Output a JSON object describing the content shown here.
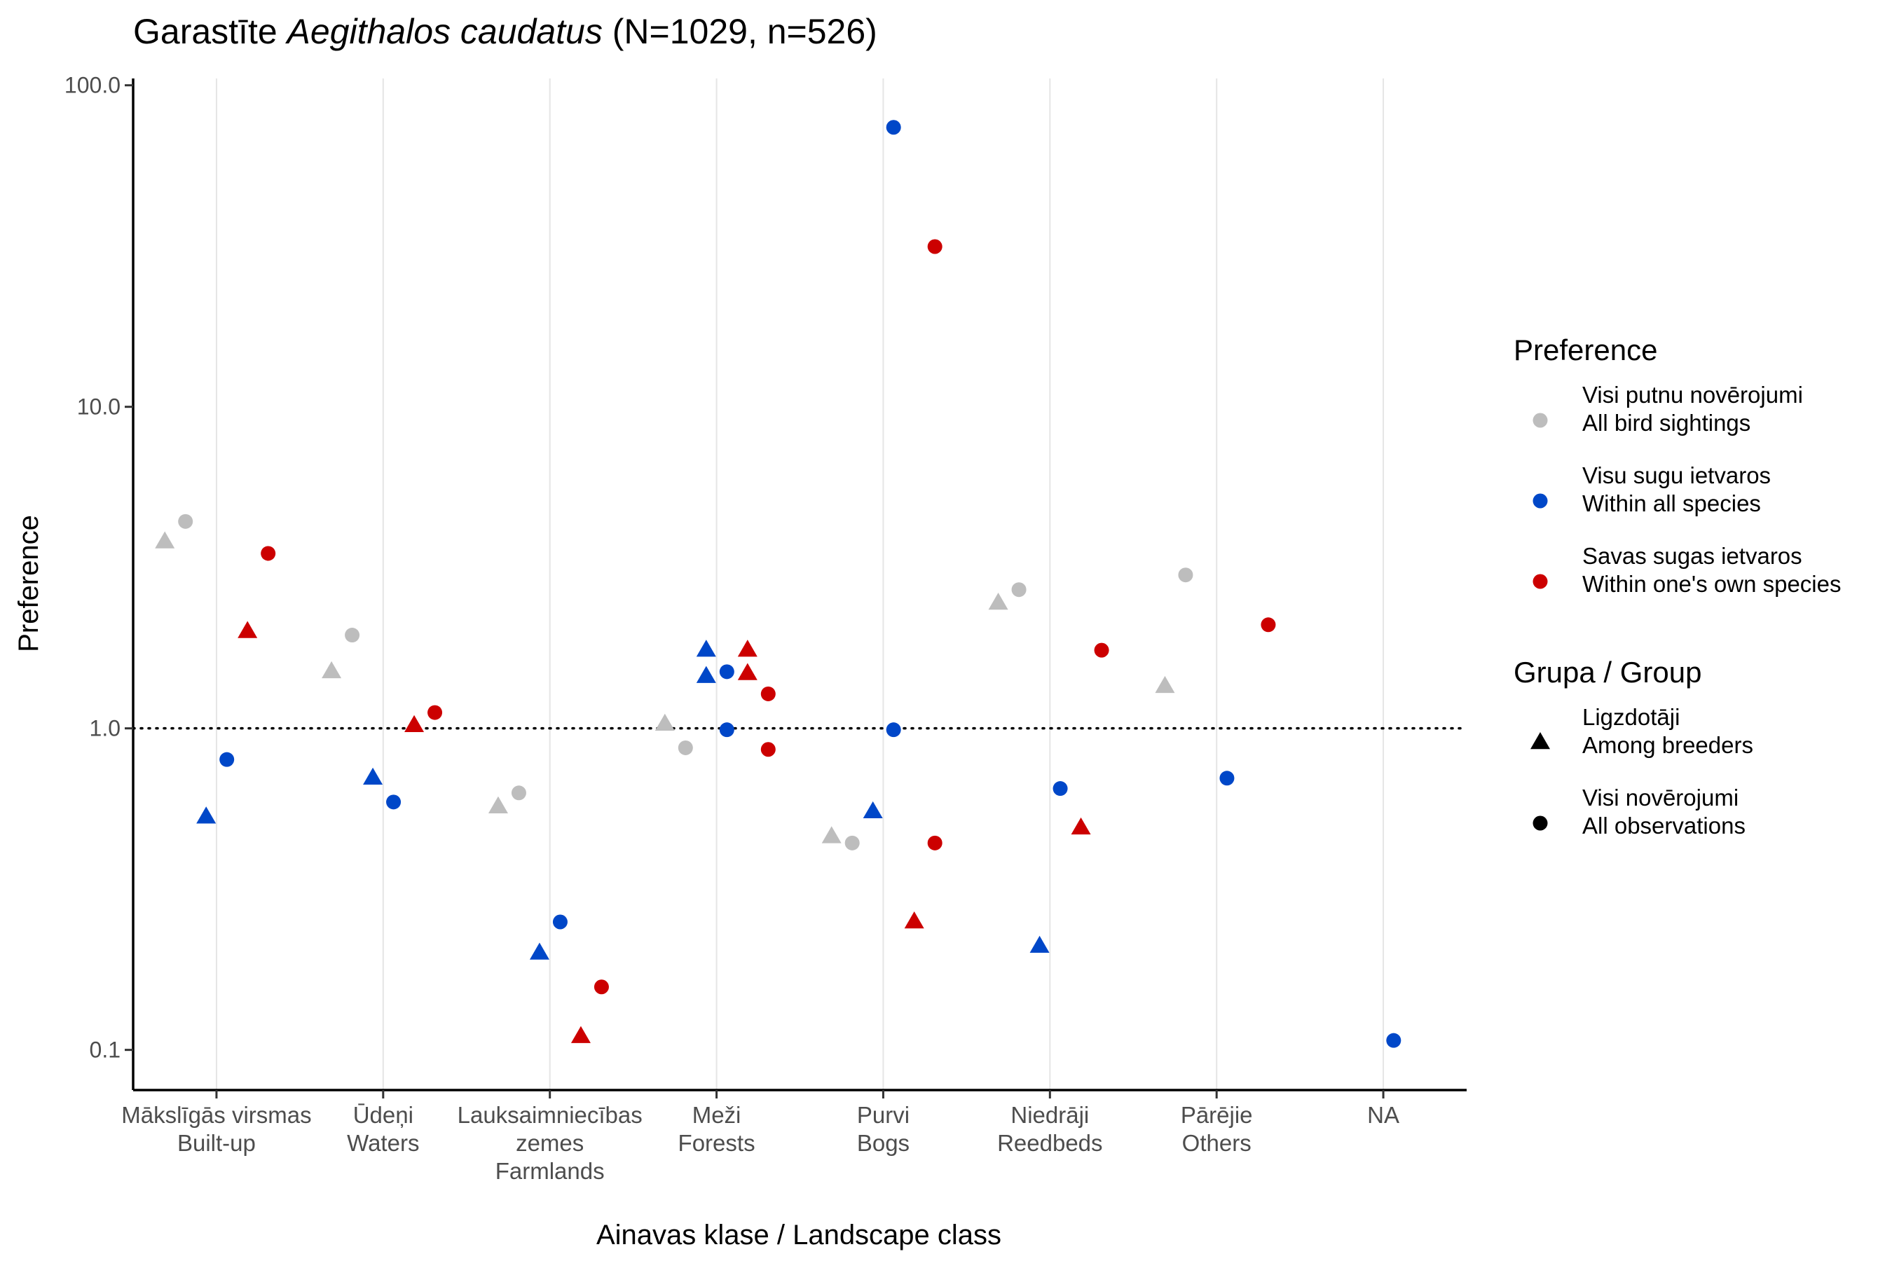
{
  "chart_data": {
    "type": "scatter",
    "title": {
      "prefix": "Garastīte ",
      "italic": "Aegithalos caudatus",
      "suffix": " (N=1029, n=526)"
    },
    "xlabel": "Ainavas klase / Landscape class",
    "ylabel": "Preference",
    "y_scale": "log10",
    "ylim": [
      0.075,
      105
    ],
    "y_ticks": [
      {
        "value": 0.1,
        "label": "0.1"
      },
      {
        "value": 1,
        "label": "1.0"
      },
      {
        "value": 10,
        "label": "10.0"
      },
      {
        "value": 100,
        "label": "100.0"
      }
    ],
    "reference_line": {
      "value": 1,
      "style": "dotted"
    },
    "grid": "vertical-major",
    "legend_placement": "right",
    "categories": [
      {
        "lines": [
          "Mākslīgās virsmas",
          "Built-up"
        ]
      },
      {
        "lines": [
          "Ūdeņi",
          "Waters"
        ]
      },
      {
        "lines": [
          "Lauksaimniecības",
          "zemes",
          "Farmlands"
        ]
      },
      {
        "lines": [
          "Meži",
          "Forests"
        ]
      },
      {
        "lines": [
          "Purvi",
          "Bogs"
        ]
      },
      {
        "lines": [
          "Niedrāji",
          "Reedbeds"
        ]
      },
      {
        "lines": [
          "Pārējie",
          "Others"
        ]
      },
      {
        "lines": [
          "NA"
        ]
      }
    ],
    "preference_series": [
      {
        "key": "all_sightings",
        "color": "#bdbdbd",
        "lines": [
          "Visi putnu novērojumi",
          "All bird sightings"
        ]
      },
      {
        "key": "all_species",
        "color": "#0047c8",
        "lines": [
          "Visu sugu ietvaros",
          "Within all species"
        ]
      },
      {
        "key": "own_species",
        "color": "#cc0000",
        "lines": [
          "Savas sugas ietvaros",
          "Within one's own species"
        ]
      }
    ],
    "group_series": [
      {
        "key": "breeders",
        "shape": "triangle",
        "lines": [
          "Ligzdotāji",
          "Among breeders"
        ]
      },
      {
        "key": "all_obs",
        "shape": "circle",
        "lines": [
          "Visi novērojumi",
          "All observations"
        ]
      }
    ],
    "legend_titles": {
      "preference": "Preference",
      "group": "Grupa / Group"
    },
    "points": [
      {
        "category": 0,
        "preference": "all_sightings",
        "group": "breeders",
        "value": 3.8
      },
      {
        "category": 0,
        "preference": "all_sightings",
        "group": "all_obs",
        "value": 4.4
      },
      {
        "category": 0,
        "preference": "all_species",
        "group": "breeders",
        "value": 0.53
      },
      {
        "category": 0,
        "preference": "all_species",
        "group": "all_obs",
        "value": 0.8
      },
      {
        "category": 0,
        "preference": "own_species",
        "group": "breeders",
        "value": 2.0
      },
      {
        "category": 0,
        "preference": "own_species",
        "group": "all_obs",
        "value": 3.5
      },
      {
        "category": 1,
        "preference": "all_sightings",
        "group": "breeders",
        "value": 1.5
      },
      {
        "category": 1,
        "preference": "all_sightings",
        "group": "all_obs",
        "value": 1.95
      },
      {
        "category": 1,
        "preference": "all_species",
        "group": "breeders",
        "value": 0.7
      },
      {
        "category": 1,
        "preference": "all_species",
        "group": "all_obs",
        "value": 0.59
      },
      {
        "category": 1,
        "preference": "own_species",
        "group": "breeders",
        "value": 1.02
      },
      {
        "category": 1,
        "preference": "own_species",
        "group": "all_obs",
        "value": 1.12
      },
      {
        "category": 2,
        "preference": "all_sightings",
        "group": "breeders",
        "value": 0.57
      },
      {
        "category": 2,
        "preference": "all_sightings",
        "group": "all_obs",
        "value": 0.63
      },
      {
        "category": 2,
        "preference": "all_species",
        "group": "breeders",
        "value": 0.2
      },
      {
        "category": 2,
        "preference": "all_species",
        "group": "all_obs",
        "value": 0.25
      },
      {
        "category": 2,
        "preference": "own_species",
        "group": "breeders",
        "value": 0.11
      },
      {
        "category": 2,
        "preference": "own_species",
        "group": "all_obs",
        "value": 0.157
      },
      {
        "category": 3,
        "preference": "all_sightings",
        "group": "breeders",
        "value": 1.03
      },
      {
        "category": 3,
        "preference": "all_sightings",
        "group": "all_obs",
        "value": 0.87
      },
      {
        "category": 3,
        "preference": "all_species",
        "group": "breeders",
        "value": 1.75
      },
      {
        "category": 3,
        "preference": "all_species",
        "group": "breeders",
        "value": 1.45
      },
      {
        "category": 3,
        "preference": "all_species",
        "group": "all_obs",
        "value": 1.5
      },
      {
        "category": 3,
        "preference": "all_species",
        "group": "all_obs",
        "value": 0.99
      },
      {
        "category": 3,
        "preference": "own_species",
        "group": "breeders",
        "value": 1.75
      },
      {
        "category": 3,
        "preference": "own_species",
        "group": "breeders",
        "value": 1.48
      },
      {
        "category": 3,
        "preference": "own_species",
        "group": "all_obs",
        "value": 1.28
      },
      {
        "category": 3,
        "preference": "own_species",
        "group": "all_obs",
        "value": 0.86
      },
      {
        "category": 4,
        "preference": "all_sightings",
        "group": "breeders",
        "value": 0.46
      },
      {
        "category": 4,
        "preference": "all_sightings",
        "group": "all_obs",
        "value": 0.44
      },
      {
        "category": 4,
        "preference": "all_species",
        "group": "breeders",
        "value": 0.55
      },
      {
        "category": 4,
        "preference": "all_species",
        "group": "all_obs",
        "value": 74
      },
      {
        "category": 4,
        "preference": "all_species",
        "group": "all_obs",
        "value": 0.99
      },
      {
        "category": 4,
        "preference": "own_species",
        "group": "breeders",
        "value": 0.25
      },
      {
        "category": 4,
        "preference": "own_species",
        "group": "all_obs",
        "value": 31.5
      },
      {
        "category": 4,
        "preference": "own_species",
        "group": "all_obs",
        "value": 0.44
      },
      {
        "category": 5,
        "preference": "all_sightings",
        "group": "breeders",
        "value": 2.45
      },
      {
        "category": 5,
        "preference": "all_sightings",
        "group": "all_obs",
        "value": 2.7
      },
      {
        "category": 5,
        "preference": "all_species",
        "group": "breeders",
        "value": 0.21
      },
      {
        "category": 5,
        "preference": "all_species",
        "group": "all_obs",
        "value": 0.65
      },
      {
        "category": 5,
        "preference": "own_species",
        "group": "breeders",
        "value": 0.49
      },
      {
        "category": 5,
        "preference": "own_species",
        "group": "all_obs",
        "value": 1.75
      },
      {
        "category": 6,
        "preference": "all_sightings",
        "group": "breeders",
        "value": 1.35
      },
      {
        "category": 6,
        "preference": "all_sightings",
        "group": "all_obs",
        "value": 3.0
      },
      {
        "category": 6,
        "preference": "all_species",
        "group": "all_obs",
        "value": 0.7
      },
      {
        "category": 6,
        "preference": "own_species",
        "group": "all_obs",
        "value": 2.1
      },
      {
        "category": 7,
        "preference": "all_species",
        "group": "all_obs",
        "value": 0.107
      }
    ]
  }
}
